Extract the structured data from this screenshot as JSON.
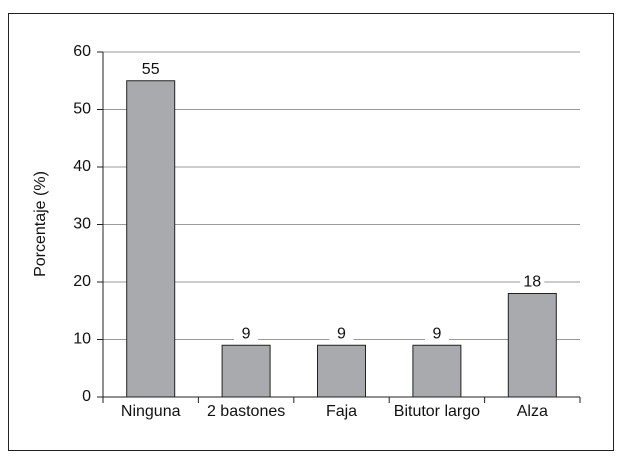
{
  "chart_data": {
    "type": "bar",
    "y_label": "Porcentaje (%)",
    "categories": [
      "Ninguna",
      "2 bastones",
      "Faja",
      "Bitutor largo",
      "Alza"
    ],
    "values": [
      55,
      9,
      9,
      9,
      18
    ],
    "color": "#a9aaad",
    "ylim": [
      0,
      60
    ],
    "yticks": [
      0,
      10,
      20,
      30,
      40,
      50,
      60
    ],
    "grid": true
  }
}
